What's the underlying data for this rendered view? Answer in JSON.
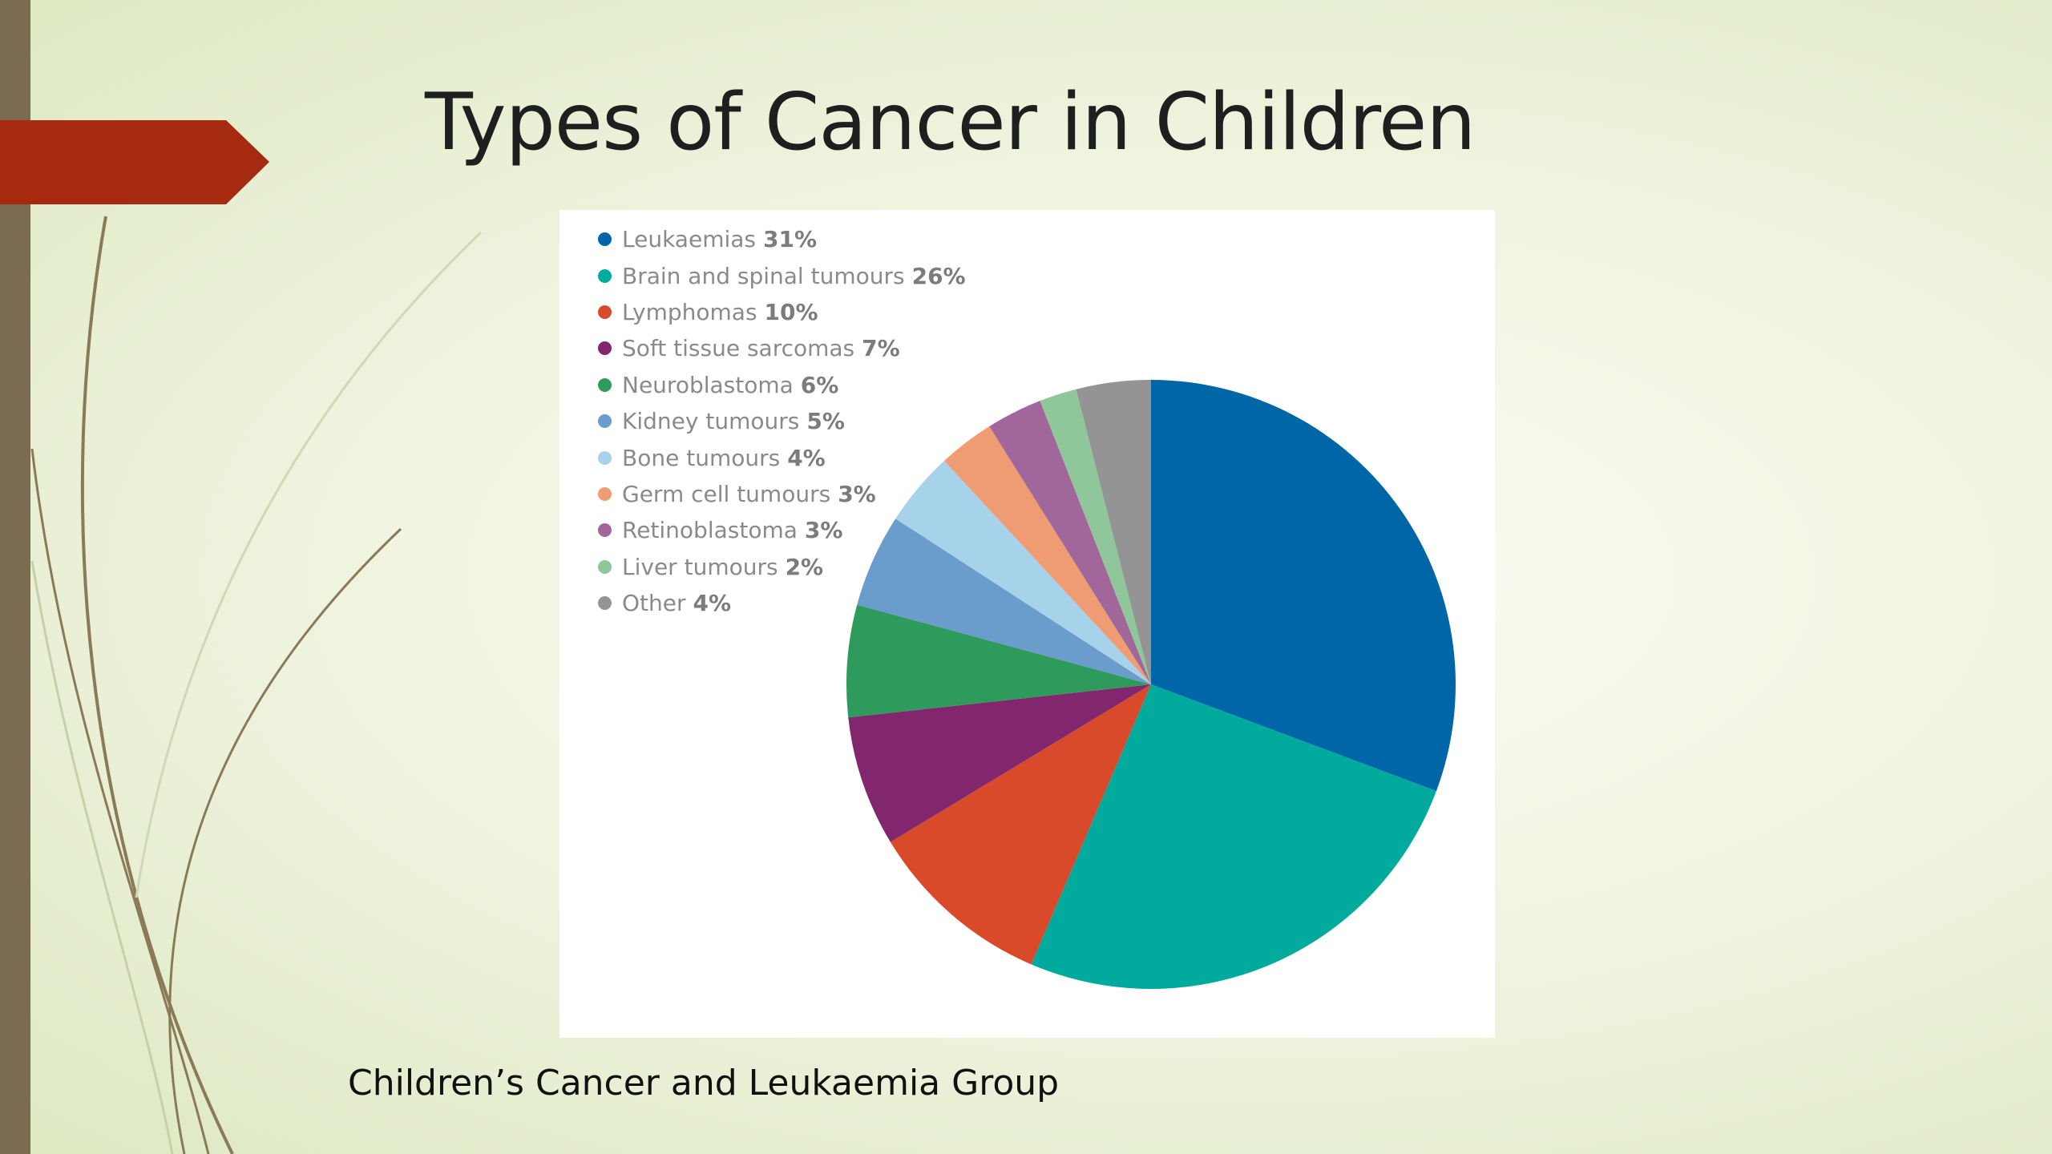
{
  "slide": {
    "title": "Types of Cancer in Children",
    "footer": "Children’s Cancer and Leukaemia Group"
  },
  "theme": {
    "bar_color": "#7b6c51",
    "arrow_color": "#a52a10",
    "stroke_color": "#8a7a58"
  },
  "chart_data": {
    "type": "pie",
    "start_angle": "12 o'clock, clockwise",
    "categories": [
      "Leukaemias",
      "Brain and spinal tumours",
      "Lymphomas",
      "Soft tissue sarcomas",
      "Neuroblastoma",
      "Kidney tumours",
      "Bone tumours",
      "Germ cell tumours",
      "Retinoblastoma",
      "Liver tumours",
      "Other"
    ],
    "values": [
      31,
      26,
      10,
      7,
      6,
      5,
      4,
      3,
      3,
      2,
      4
    ],
    "labels": [
      "31%",
      "26%",
      "10%",
      "7%",
      "6%",
      "5%",
      "4%",
      "3%",
      "3%",
      "2%",
      "4%"
    ],
    "colors": [
      "#0066a8",
      "#00ab9e",
      "#d94a2b",
      "#82276e",
      "#2e9a5c",
      "#6a9ccc",
      "#a7d3ea",
      "#ef9c74",
      "#a2679a",
      "#8fc79a",
      "#949494"
    ],
    "legend_position": "top-left"
  }
}
